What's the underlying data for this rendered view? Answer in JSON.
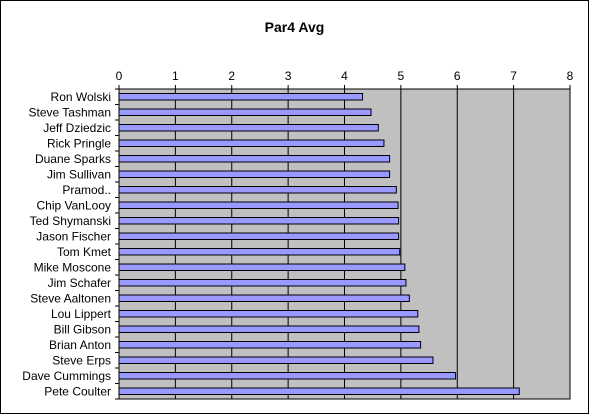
{
  "chart_data": {
    "type": "bar",
    "orientation": "horizontal",
    "title": "Par4 Avg",
    "xlabel": "",
    "ylabel": "",
    "xlim": [
      0,
      8
    ],
    "ticks": [
      "0",
      "1",
      "2",
      "3",
      "4",
      "5",
      "6",
      "7",
      "8"
    ],
    "categories": [
      "Ron Wolski",
      "Steve Tashman",
      "Jeff Dziedzic",
      "Rick Pringle",
      "Duane Sparks",
      "Jim Sullivan",
      "Pramod..",
      "Chip VanLooy",
      "Ted Shymanski",
      "Jason Fischer",
      "Tom Kmet",
      "Mike Moscone",
      "Jim Schafer",
      "Steve Aaltonen",
      "Lou Lippert",
      "Bill Gibson",
      "Brian Anton",
      "Steve Erps",
      "Dave Cummings",
      "Pete Coulter"
    ],
    "values": [
      4.32,
      4.47,
      4.6,
      4.7,
      4.8,
      4.8,
      4.92,
      4.95,
      4.96,
      4.96,
      4.98,
      5.07,
      5.09,
      5.15,
      5.3,
      5.32,
      5.35,
      5.57,
      5.97,
      7.1
    ],
    "grid": "vertical",
    "legend": "none",
    "bar_color": "#9999ff",
    "plot_background": "#c0c0c0",
    "bar_edge_color": "#000000"
  }
}
